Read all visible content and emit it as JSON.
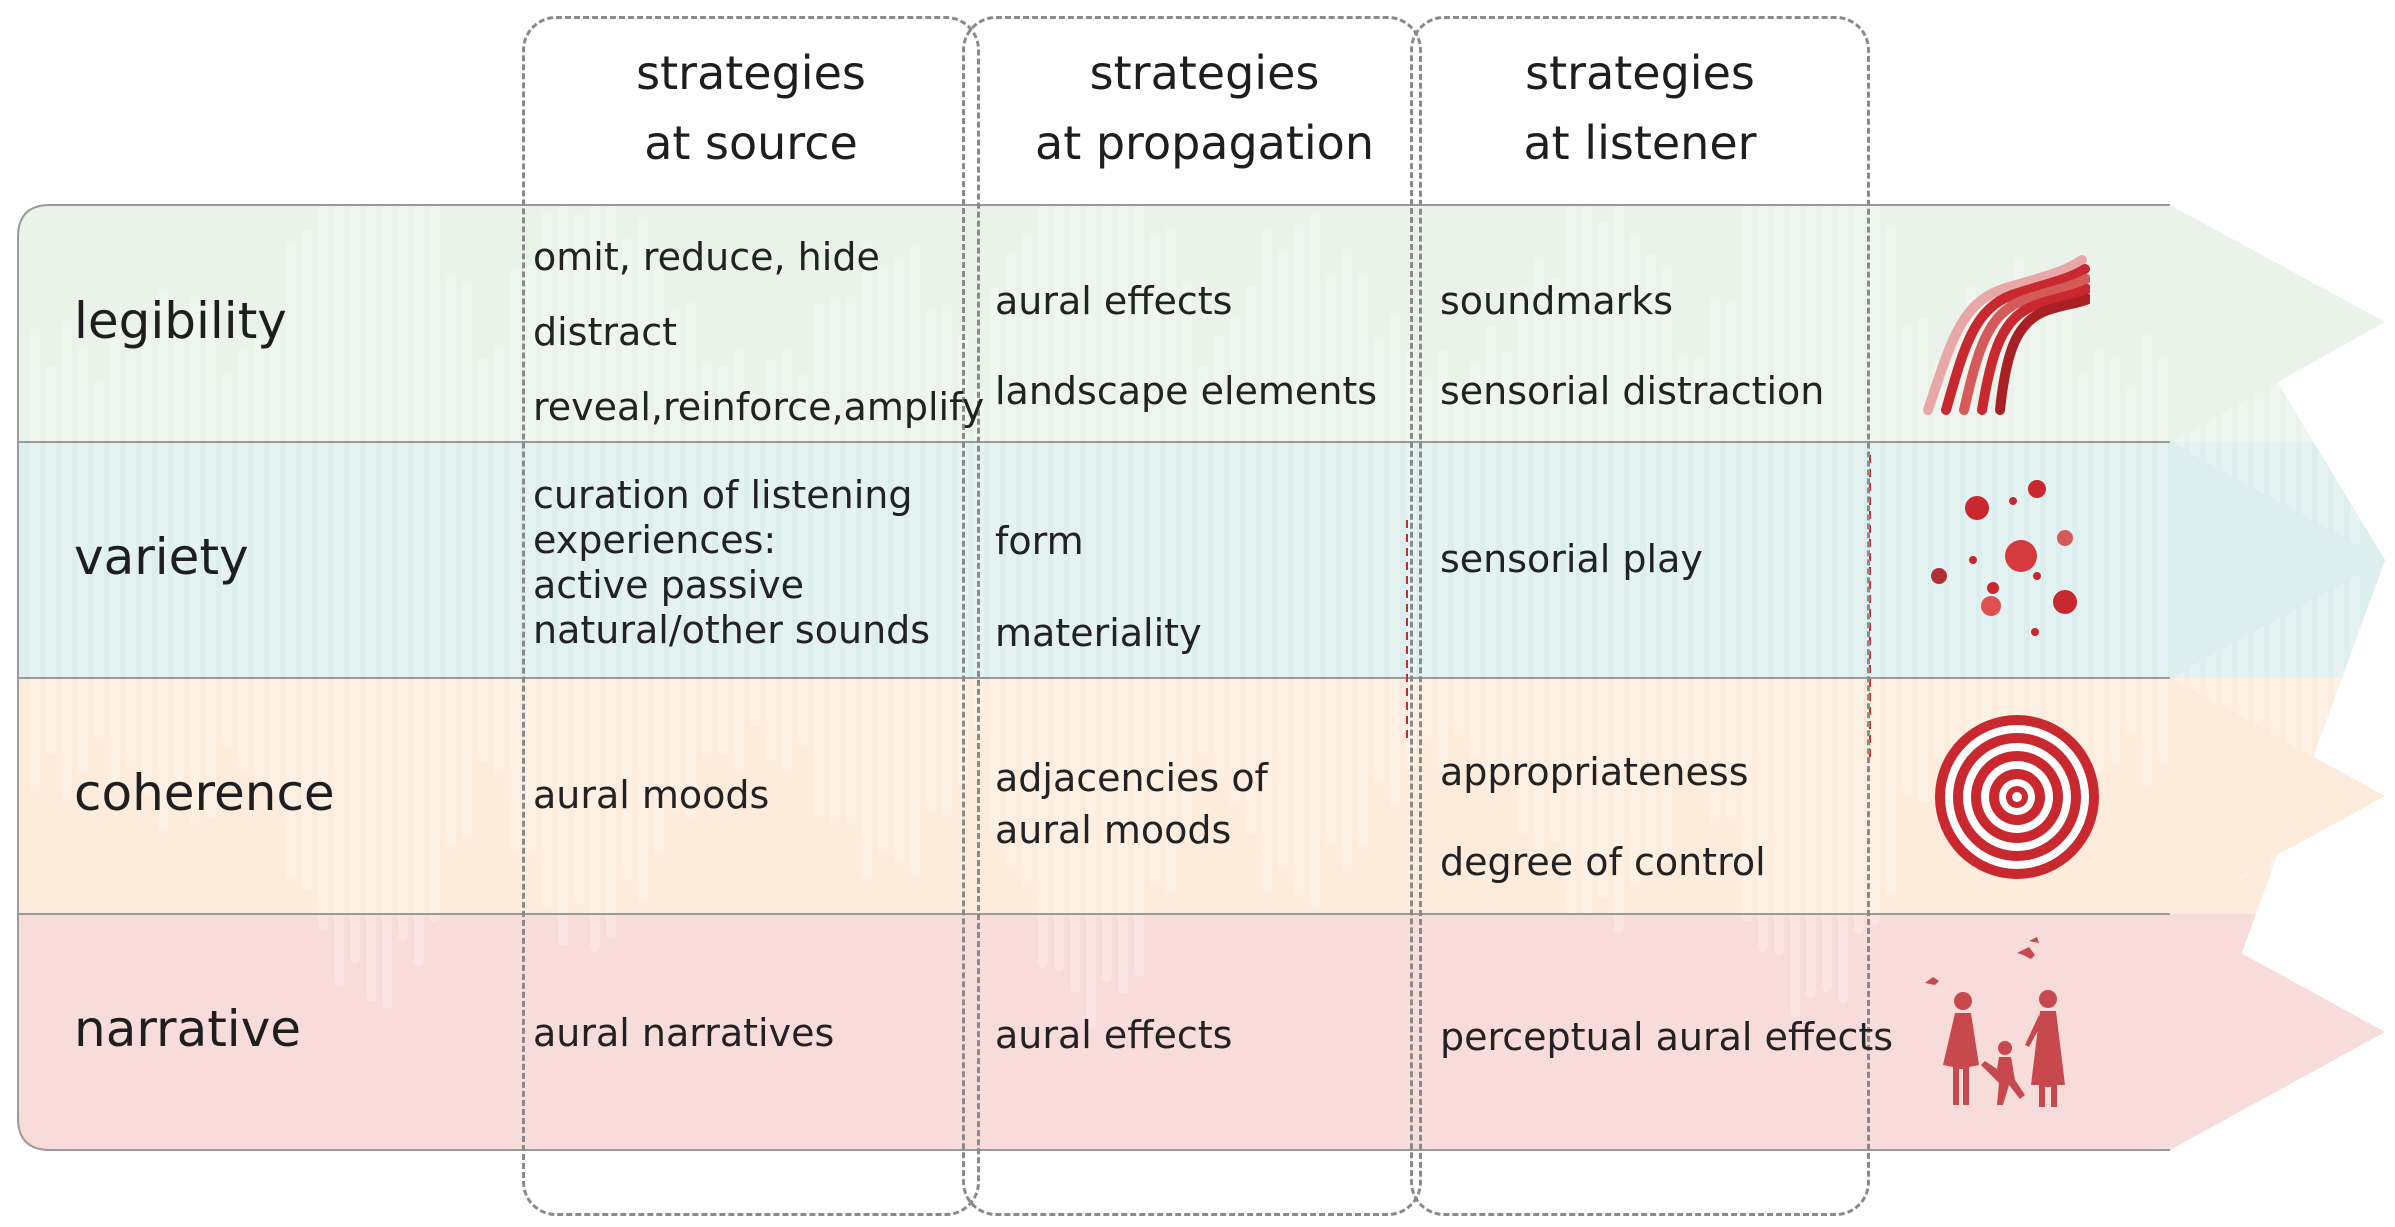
{
  "columns": [
    {
      "id": "source",
      "line1": "strategies",
      "line2": "at source"
    },
    {
      "id": "propagation",
      "line1": "strategies",
      "line2": "at propagation"
    },
    {
      "id": "listener",
      "line1": "strategies",
      "line2": "at listener"
    }
  ],
  "rows": [
    {
      "label": "legibility",
      "color": "#e9f3e9",
      "icon": "curved-lines-icon",
      "source": [
        "omit, reduce, hide",
        "distract",
        "reveal,reinforce,amplify"
      ],
      "propagation": [
        "aural effects",
        "landscape elements"
      ],
      "listener": [
        "soundmarks",
        "sensorial distraction"
      ]
    },
    {
      "label": "variety",
      "color": "#dceeed",
      "icon": "scattered-dots-icon",
      "source": [
        "curation of listening",
        "experiences:",
        "active passive",
        "natural/other sounds"
      ],
      "propagation": [
        "form",
        "materiality"
      ],
      "listener": [
        "sensorial play"
      ]
    },
    {
      "label": "coherence",
      "color": "#fdebdc",
      "icon": "concentric-circles-icon",
      "source": [
        "aural moods"
      ],
      "propagation": [
        "adjacencies of",
        "aural moods"
      ],
      "listener": [
        "appropriateness",
        "degree of control"
      ]
    },
    {
      "label": "narrative",
      "color": "#f8dcda",
      "icon": "family-silhouette-icon",
      "source": [
        "aural narratives"
      ],
      "propagation": [
        "aural effects"
      ],
      "listener": [
        "perceptual aural effects"
      ]
    }
  ],
  "colors": {
    "accent": "#c8282e",
    "legibility": "#e9f3e9",
    "variety": "#dceeed",
    "coherence": "#fdebdc",
    "narrative": "#f8dcda",
    "divider": "#9a9a9a",
    "dashed_box": "#8a8a8a"
  }
}
